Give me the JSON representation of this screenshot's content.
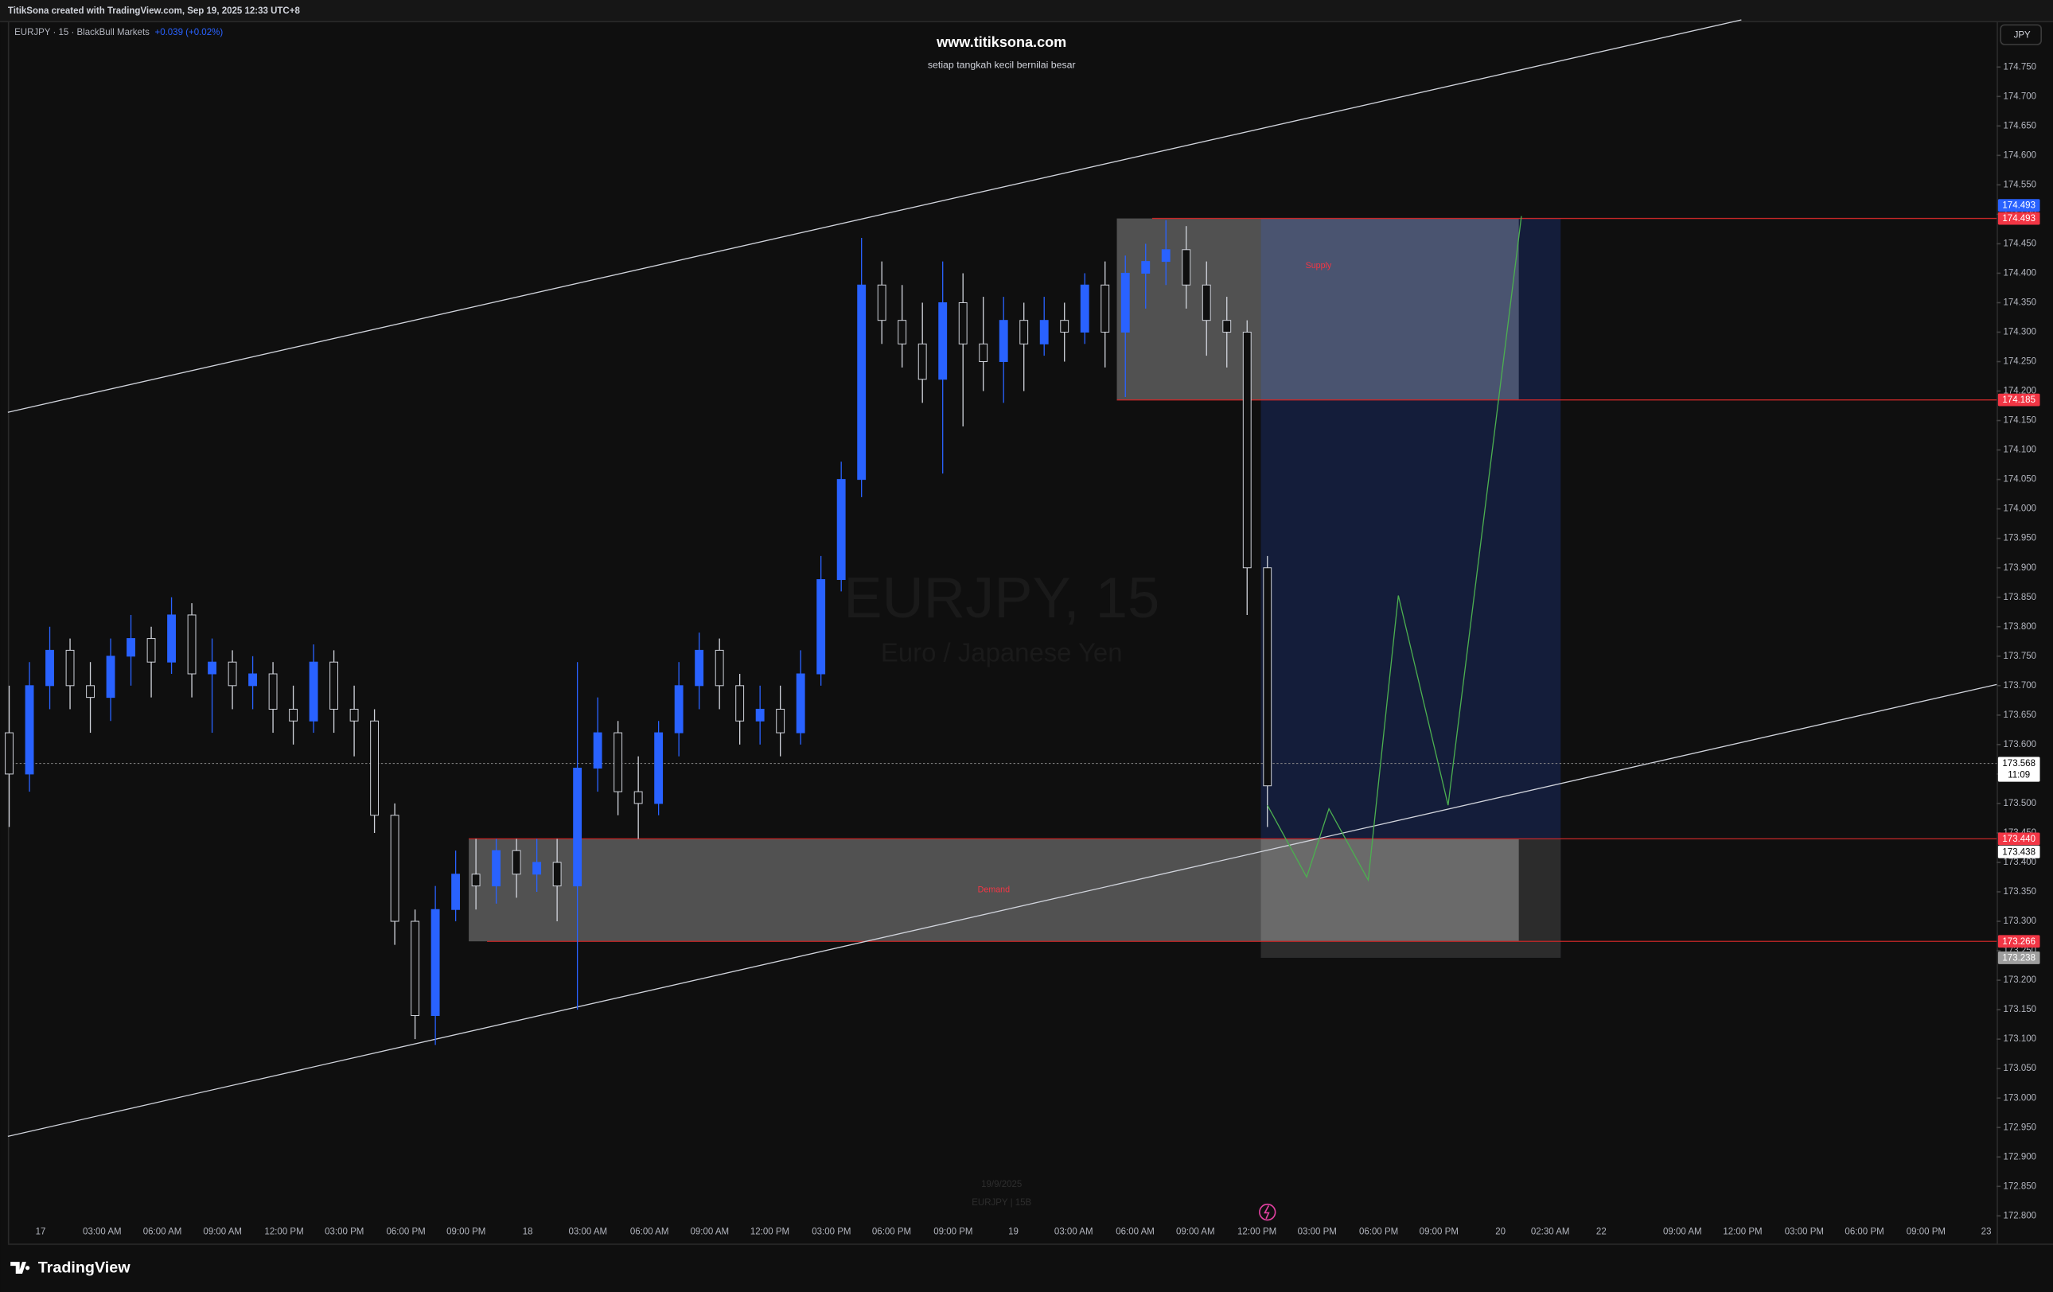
{
  "header": {
    "caption": "TitikSona created with TradingView.com, Sep 19, 2025 12:33 UTC+8",
    "symbol": "EURJPY · 15 · BlackBull Markets",
    "change": "+0.039 (+0.02%)",
    "currency": "JPY",
    "brand": "TradingView"
  },
  "chart_data": {
    "type": "candlestick",
    "title": "www.titiksona.com",
    "subtitle": "setiap tangkah kecil bernilai besar",
    "watermark": "EURJPY, 15",
    "watermark_subtitle": "Euro / Japanese Yen",
    "footer_date": "19/9/2025",
    "footer_symbol": "EURJPY | 15B",
    "up_color": "#2962ff",
    "down_color": "#d1d4dc",
    "grid": false,
    "open": [
      173.62,
      173.55,
      173.7,
      173.76,
      173.7,
      173.68,
      173.75,
      173.78,
      173.74,
      173.82,
      173.72,
      173.74,
      173.7,
      173.72,
      173.66,
      173.64,
      173.74,
      173.66,
      173.64,
      173.48,
      173.3,
      173.14,
      173.32,
      173.38,
      173.36,
      173.42,
      173.38,
      173.4,
      173.36,
      173.56,
      173.62,
      173.52,
      173.5,
      173.62,
      173.7,
      173.76,
      173.7,
      173.64,
      173.66,
      173.62,
      173.72,
      173.88,
      174.05,
      174.38,
      174.32,
      174.28,
      174.22,
      174.35,
      174.28,
      174.25,
      174.32,
      174.28,
      174.32,
      174.3,
      174.38,
      174.3,
      174.4,
      174.42,
      174.44,
      174.38,
      174.32,
      174.3,
      173.9
    ],
    "high": [
      173.7,
      173.74,
      173.8,
      173.78,
      173.74,
      173.78,
      173.82,
      173.8,
      173.85,
      173.84,
      173.78,
      173.76,
      173.75,
      173.74,
      173.7,
      173.77,
      173.76,
      173.7,
      173.66,
      173.5,
      173.32,
      173.36,
      173.42,
      173.44,
      173.44,
      173.44,
      173.44,
      173.44,
      173.74,
      173.68,
      173.64,
      173.58,
      173.64,
      173.74,
      173.79,
      173.78,
      173.72,
      173.7,
      173.7,
      173.76,
      173.92,
      174.08,
      174.46,
      174.42,
      174.38,
      174.35,
      174.42,
      174.4,
      174.36,
      174.36,
      174.35,
      174.36,
      174.35,
      174.4,
      174.42,
      174.43,
      174.45,
      174.49,
      174.48,
      174.42,
      174.36,
      174.32,
      173.92
    ],
    "low": [
      173.46,
      173.52,
      173.66,
      173.66,
      173.62,
      173.64,
      173.7,
      173.68,
      173.72,
      173.68,
      173.62,
      173.66,
      173.66,
      173.62,
      173.6,
      173.62,
      173.62,
      173.58,
      173.45,
      173.26,
      173.1,
      173.09,
      173.3,
      173.32,
      173.33,
      173.34,
      173.35,
      173.3,
      173.15,
      173.52,
      173.48,
      173.44,
      173.48,
      173.58,
      173.66,
      173.66,
      173.6,
      173.6,
      173.58,
      173.6,
      173.7,
      173.86,
      174.02,
      174.28,
      174.24,
      174.18,
      174.06,
      174.14,
      174.2,
      174.18,
      174.2,
      174.26,
      174.25,
      174.28,
      174.24,
      174.19,
      174.34,
      174.38,
      174.34,
      174.26,
      174.24,
      173.82,
      173.46
    ],
    "close": [
      173.55,
      173.7,
      173.76,
      173.7,
      173.68,
      173.75,
      173.78,
      173.74,
      173.82,
      173.72,
      173.74,
      173.7,
      173.72,
      173.66,
      173.64,
      173.74,
      173.66,
      173.64,
      173.48,
      173.3,
      173.14,
      173.32,
      173.38,
      173.36,
      173.42,
      173.38,
      173.4,
      173.36,
      173.56,
      173.62,
      173.52,
      173.5,
      173.62,
      173.7,
      173.76,
      173.7,
      173.64,
      173.66,
      173.62,
      173.72,
      173.88,
      174.05,
      174.38,
      174.32,
      174.28,
      174.22,
      174.35,
      174.28,
      174.25,
      174.32,
      174.28,
      174.32,
      174.3,
      174.38,
      174.3,
      174.4,
      174.42,
      174.44,
      174.38,
      174.32,
      174.3,
      173.9,
      173.53
    ],
    "ylim": [
      172.753,
      174.826
    ],
    "yticks": [
      {
        "value": 174.75,
        "label": "174.750"
      },
      {
        "value": 174.7,
        "label": "174.700"
      },
      {
        "value": 174.65,
        "label": "174.650"
      },
      {
        "value": 174.6,
        "label": "174.600"
      },
      {
        "value": 174.55,
        "label": "174.550"
      },
      {
        "value": 174.5,
        "label": "174.500"
      },
      {
        "value": 174.45,
        "label": "174.450"
      },
      {
        "value": 174.4,
        "label": "174.400"
      },
      {
        "value": 174.35,
        "label": "174.350"
      },
      {
        "value": 174.3,
        "label": "174.300"
      },
      {
        "value": 174.25,
        "label": "174.250"
      },
      {
        "value": 174.2,
        "label": "174.200"
      },
      {
        "value": 174.15,
        "label": "174.150"
      },
      {
        "value": 174.1,
        "label": "174.100"
      },
      {
        "value": 174.05,
        "label": "174.050"
      },
      {
        "value": 174,
        "label": "174.000"
      },
      {
        "value": 173.95,
        "label": "173.950"
      },
      {
        "value": 173.9,
        "label": "173.900"
      },
      {
        "value": 173.85,
        "label": "173.850"
      },
      {
        "value": 173.8,
        "label": "173.800"
      },
      {
        "value": 173.75,
        "label": "173.750"
      },
      {
        "value": 173.7,
        "label": "173.700"
      },
      {
        "value": 173.65,
        "label": "173.650"
      },
      {
        "value": 173.6,
        "label": "173.600"
      },
      {
        "value": 173.55,
        "label": "173.550"
      },
      {
        "value": 173.5,
        "label": "173.500"
      },
      {
        "value": 173.45,
        "label": "173.450"
      },
      {
        "value": 173.4,
        "label": "173.400"
      },
      {
        "value": 173.35,
        "label": "173.350"
      },
      {
        "value": 173.3,
        "label": "173.300"
      },
      {
        "value": 173.25,
        "label": "173.250"
      },
      {
        "value": 173.2,
        "label": "173.200"
      },
      {
        "value": 173.15,
        "label": "173.150"
      },
      {
        "value": 173.1,
        "label": "173.100"
      },
      {
        "value": 173.05,
        "label": "173.050"
      },
      {
        "value": 173,
        "label": "173.000"
      },
      {
        "value": 172.95,
        "label": "172.950"
      },
      {
        "value": 172.9,
        "label": "172.900"
      },
      {
        "value": 172.85,
        "label": "172.850"
      },
      {
        "value": 172.8,
        "label": "172.800"
      }
    ],
    "xticks": [
      "17",
      "03:00 AM",
      "06:00 AM",
      "09:00 AM",
      "12:00 PM",
      "03:00 PM",
      "06:00 PM",
      "09:00 PM",
      "18",
      "03:00 AM",
      "06:00 AM",
      "09:00 AM",
      "12:00 PM",
      "03:00 PM",
      "06:00 PM",
      "09:00 PM",
      "19",
      "03:00 AM",
      "06:00 AM",
      "09:00 AM",
      "12:00 PM",
      "03:00 PM",
      "06:00 PM",
      "09:00 PM",
      "20",
      "02:30 AM",
      "22",
      "09:00 AM",
      "12:00 PM",
      "03:00 PM",
      "06:00 PM",
      "09:00 PM",
      "23"
    ],
    "zones": [
      {
        "name": "Supply",
        "top": 174.493,
        "bottom": 174.185
      },
      {
        "name": "Demand",
        "top": 173.44,
        "bottom": 173.266
      }
    ],
    "target_box": {
      "top": 174.493,
      "bottom": 173.238
    },
    "channel": [
      [
        174.164,
        174.83
      ],
      [
        172.935,
        173.702
      ]
    ],
    "projection": [
      173.497,
      173.375,
      173.491,
      173.37,
      173.853,
      173.497,
      174.497
    ],
    "projection_color": "#4caf50",
    "last_price": {
      "value": 173.568,
      "label": "173.568",
      "countdown": "11:09"
    },
    "price_levels": [
      {
        "value": 174.493,
        "label": "174.493",
        "color": "#f23645"
      },
      {
        "value": 174.493,
        "label": "174.493",
        "color": "#2962ff"
      },
      {
        "value": 174.185,
        "label": "174.185",
        "color": "#f23645"
      },
      {
        "value": 173.44,
        "label": "173.440",
        "color": "#f23645"
      },
      {
        "value": 173.438,
        "label": "173.438",
        "color": "#ffffff"
      },
      {
        "value": 173.266,
        "label": "173.266",
        "color": "#f23645"
      },
      {
        "value": 173.238,
        "label": "173.238",
        "color": "#9e9e9e"
      }
    ]
  }
}
